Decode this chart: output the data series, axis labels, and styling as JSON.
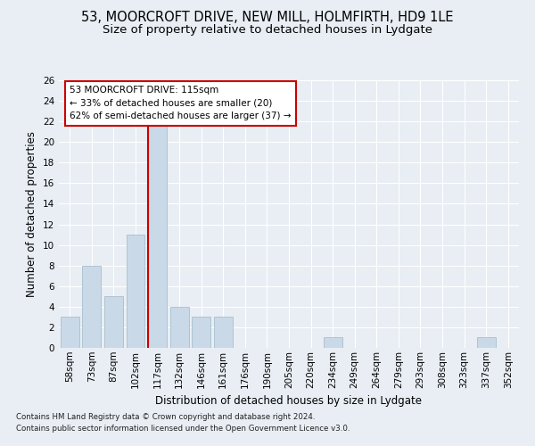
{
  "title": "53, MOORCROFT DRIVE, NEW MILL, HOLMFIRTH, HD9 1LE",
  "subtitle": "Size of property relative to detached houses in Lydgate",
  "xlabel": "Distribution of detached houses by size in Lydgate",
  "ylabel": "Number of detached properties",
  "categories": [
    "58sqm",
    "73sqm",
    "87sqm",
    "102sqm",
    "117sqm",
    "132sqm",
    "146sqm",
    "161sqm",
    "176sqm",
    "190sqm",
    "205sqm",
    "220sqm",
    "234sqm",
    "249sqm",
    "264sqm",
    "279sqm",
    "293sqm",
    "308sqm",
    "323sqm",
    "337sqm",
    "352sqm"
  ],
  "values": [
    3,
    8,
    5,
    11,
    22,
    4,
    3,
    3,
    0,
    0,
    0,
    0,
    1,
    0,
    0,
    0,
    0,
    0,
    0,
    1,
    0
  ],
  "bar_color": "#c9d9e8",
  "bar_edgecolor": "#a8bfcf",
  "property_line_index": 4,
  "property_line_color": "#cc0000",
  "annotation_text": "53 MOORCROFT DRIVE: 115sqm\n← 33% of detached houses are smaller (20)\n62% of semi-detached houses are larger (37) →",
  "annotation_box_color": "#ffffff",
  "annotation_box_edgecolor": "#cc0000",
  "ylim": [
    0,
    26
  ],
  "yticks": [
    0,
    2,
    4,
    6,
    8,
    10,
    12,
    14,
    16,
    18,
    20,
    22,
    24,
    26
  ],
  "footnote1": "Contains HM Land Registry data © Crown copyright and database right 2024.",
  "footnote2": "Contains public sector information licensed under the Open Government Licence v3.0.",
  "background_color": "#e8eef4",
  "title_fontsize": 10.5,
  "subtitle_fontsize": 9.5,
  "xlabel_fontsize": 8.5,
  "ylabel_fontsize": 8.5,
  "tick_fontsize": 7.5,
  "annotation_fontsize": 7.5,
  "footnote_fontsize": 6.2
}
